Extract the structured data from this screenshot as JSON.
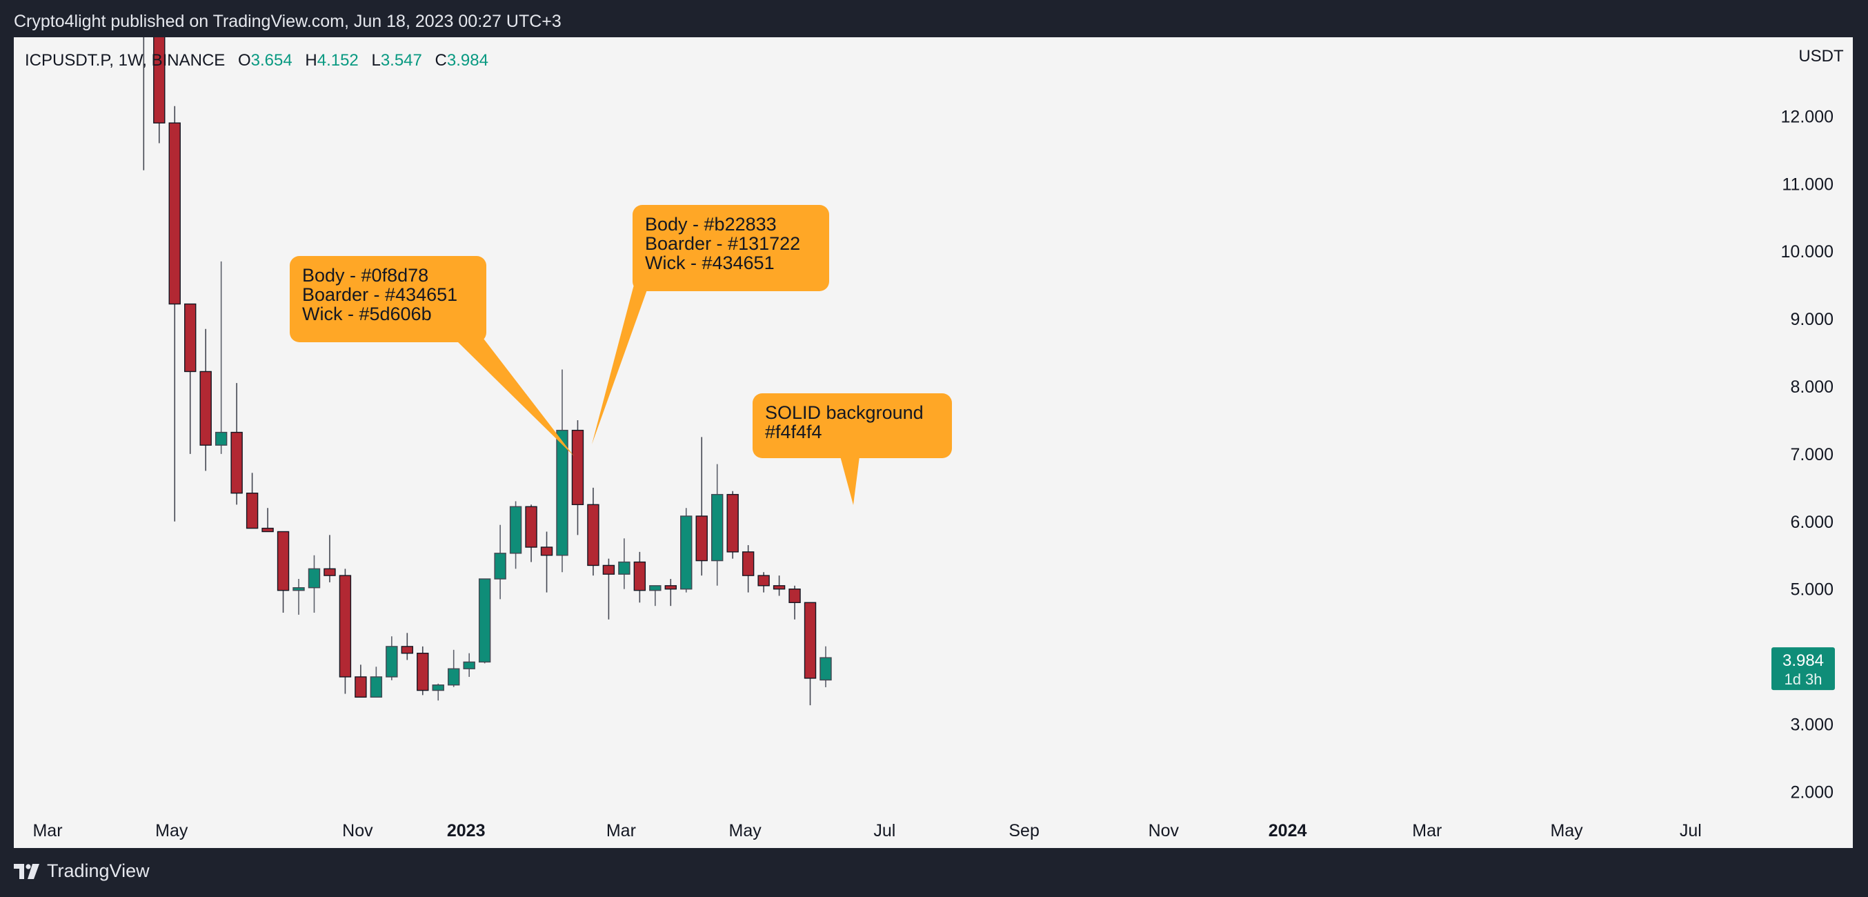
{
  "header": {
    "publish_text": "Crypto4light published on TradingView.com, Jun 18, 2023 00:27 UTC+3"
  },
  "legend": {
    "symbol": "ICPUSDT.P, 1W, BINANCE",
    "open_label": "O",
    "open": "3.654",
    "high_label": "H",
    "high": "4.152",
    "low_label": "L",
    "low": "3.547",
    "close_label": "C",
    "close": "3.984"
  },
  "footer": {
    "brand": "TradingView"
  },
  "chart_data": {
    "type": "candlestick",
    "symbol": "ICPUSDT.P",
    "interval": "1W",
    "exchange": "BINANCE",
    "currency_label": "USDT",
    "y_ticks": [
      "12.000",
      "11.000",
      "10.000",
      "9.000",
      "8.000",
      "7.000",
      "6.000",
      "5.000",
      "4.000",
      "3.000",
      "2.000"
    ],
    "y_tick_values": [
      12,
      11,
      10,
      9,
      8,
      7,
      6,
      5,
      4,
      3,
      2
    ],
    "x_ticks": [
      {
        "label": "Mar",
        "bold": false,
        "week": 0
      },
      {
        "label": "May",
        "bold": false,
        "week": 8
      },
      {
        "label": "Nov",
        "bold": false,
        "week": 20
      },
      {
        "label": "2023",
        "bold": true,
        "week": 27
      },
      {
        "label": "Mar",
        "bold": false,
        "week": 37
      },
      {
        "label": "May",
        "bold": false,
        "week": 45
      },
      {
        "label": "Jul",
        "bold": false,
        "week": 54
      },
      {
        "label": "Sep",
        "bold": false,
        "week": 63
      },
      {
        "label": "Nov",
        "bold": false,
        "week": 72
      },
      {
        "label": "2024",
        "bold": true,
        "week": 80
      },
      {
        "label": "Mar",
        "bold": false,
        "week": 89
      },
      {
        "label": "May",
        "bold": false,
        "week": 98
      },
      {
        "label": "Jul",
        "bold": false,
        "week": 106
      }
    ],
    "candles": [
      {
        "o": 14.5,
        "h": 15.5,
        "l": 11.2,
        "c": 13.2
      },
      {
        "o": 13.2,
        "h": 13.5,
        "l": 11.6,
        "c": 11.9
      },
      {
        "o": 11.9,
        "h": 12.15,
        "l": 6.0,
        "c": 9.22
      },
      {
        "o": 9.22,
        "h": 9.22,
        "l": 7.0,
        "c": 8.22
      },
      {
        "o": 8.22,
        "h": 8.85,
        "l": 6.75,
        "c": 7.13
      },
      {
        "o": 7.13,
        "h": 9.85,
        "l": 7.0,
        "c": 7.32
      },
      {
        "o": 7.32,
        "h": 8.05,
        "l": 6.25,
        "c": 6.42
      },
      {
        "o": 6.42,
        "h": 6.72,
        "l": 5.9,
        "c": 5.9
      },
      {
        "o": 5.9,
        "h": 6.2,
        "l": 5.85,
        "c": 5.85
      },
      {
        "o": 5.85,
        "h": 5.85,
        "l": 4.65,
        "c": 4.98
      },
      {
        "o": 4.98,
        "h": 5.15,
        "l": 4.62,
        "c": 5.02
      },
      {
        "o": 5.02,
        "h": 5.5,
        "l": 4.65,
        "c": 5.3
      },
      {
        "o": 5.3,
        "h": 5.8,
        "l": 5.1,
        "c": 5.2
      },
      {
        "o": 5.2,
        "h": 5.3,
        "l": 3.45,
        "c": 3.7
      },
      {
        "o": 3.7,
        "h": 3.88,
        "l": 3.45,
        "c": 3.4
      },
      {
        "o": 3.4,
        "h": 3.85,
        "l": 3.5,
        "c": 3.7
      },
      {
        "o": 3.7,
        "h": 4.3,
        "l": 3.65,
        "c": 4.15
      },
      {
        "o": 4.15,
        "h": 4.35,
        "l": 3.95,
        "c": 4.05
      },
      {
        "o": 4.05,
        "h": 4.15,
        "l": 3.43,
        "c": 3.5
      },
      {
        "o": 3.5,
        "h": 3.6,
        "l": 3.35,
        "c": 3.58
      },
      {
        "o": 3.58,
        "h": 4.1,
        "l": 3.55,
        "c": 3.82
      },
      {
        "o": 3.82,
        "h": 4.05,
        "l": 3.7,
        "c": 3.92
      },
      {
        "o": 3.92,
        "h": 5.15,
        "l": 3.9,
        "c": 5.15
      },
      {
        "o": 5.15,
        "h": 5.95,
        "l": 4.85,
        "c": 5.53
      },
      {
        "o": 5.53,
        "h": 6.3,
        "l": 5.3,
        "c": 6.22
      },
      {
        "o": 6.22,
        "h": 6.25,
        "l": 5.4,
        "c": 5.62
      },
      {
        "o": 5.62,
        "h": 5.85,
        "l": 4.95,
        "c": 5.5
      },
      {
        "o": 5.5,
        "h": 8.25,
        "l": 5.25,
        "c": 7.35
      },
      {
        "o": 7.35,
        "h": 7.5,
        "l": 5.8,
        "c": 6.25
      },
      {
        "o": 6.25,
        "h": 6.5,
        "l": 5.2,
        "c": 5.35
      },
      {
        "o": 5.35,
        "h": 5.45,
        "l": 4.55,
        "c": 5.22
      },
      {
        "o": 5.22,
        "h": 5.75,
        "l": 5.0,
        "c": 5.4
      },
      {
        "o": 5.4,
        "h": 5.55,
        "l": 4.8,
        "c": 4.98
      },
      {
        "o": 4.98,
        "h": 5.05,
        "l": 4.75,
        "c": 5.05
      },
      {
        "o": 5.05,
        "h": 5.15,
        "l": 4.75,
        "c": 5.0
      },
      {
        "o": 5.0,
        "h": 6.2,
        "l": 4.95,
        "c": 6.08
      },
      {
        "o": 6.08,
        "h": 7.25,
        "l": 5.2,
        "c": 5.42
      },
      {
        "o": 5.42,
        "h": 6.85,
        "l": 5.05,
        "c": 6.4
      },
      {
        "o": 6.4,
        "h": 6.45,
        "l": 5.45,
        "c": 5.55
      },
      {
        "o": 5.55,
        "h": 5.65,
        "l": 4.95,
        "c": 5.2
      },
      {
        "o": 5.2,
        "h": 5.25,
        "l": 4.95,
        "c": 5.05
      },
      {
        "o": 5.05,
        "h": 5.2,
        "l": 4.9,
        "c": 5.0
      },
      {
        "o": 5.0,
        "h": 5.05,
        "l": 4.55,
        "c": 4.8
      },
      {
        "o": 4.8,
        "h": 4.8,
        "l": 3.28,
        "c": 3.68
      },
      {
        "o": 3.654,
        "h": 4.152,
        "l": 3.547,
        "c": 3.984
      }
    ],
    "last_price": {
      "value": "3.984",
      "countdown": "1d 3h"
    },
    "colors": {
      "up_body": "#0f8d78",
      "up_border": "#434651",
      "up_wick": "#5d606b",
      "down_body": "#b22833",
      "down_border": "#131722",
      "down_wick": "#434651",
      "background": "#f4f4f4",
      "callout": "#ffa726"
    },
    "annotations": [
      {
        "id": "up-candle-colors",
        "lines": [
          "Body - #0f8d78",
          "Boarder - #434651",
          "Wick - #5d606b"
        ]
      },
      {
        "id": "down-candle-colors",
        "lines": [
          "Body - #b22833",
          "Boarder - #131722",
          "Wick - #434651"
        ]
      },
      {
        "id": "background-note",
        "lines": [
          "SOLID background",
          "#f4f4f4"
        ]
      }
    ]
  }
}
